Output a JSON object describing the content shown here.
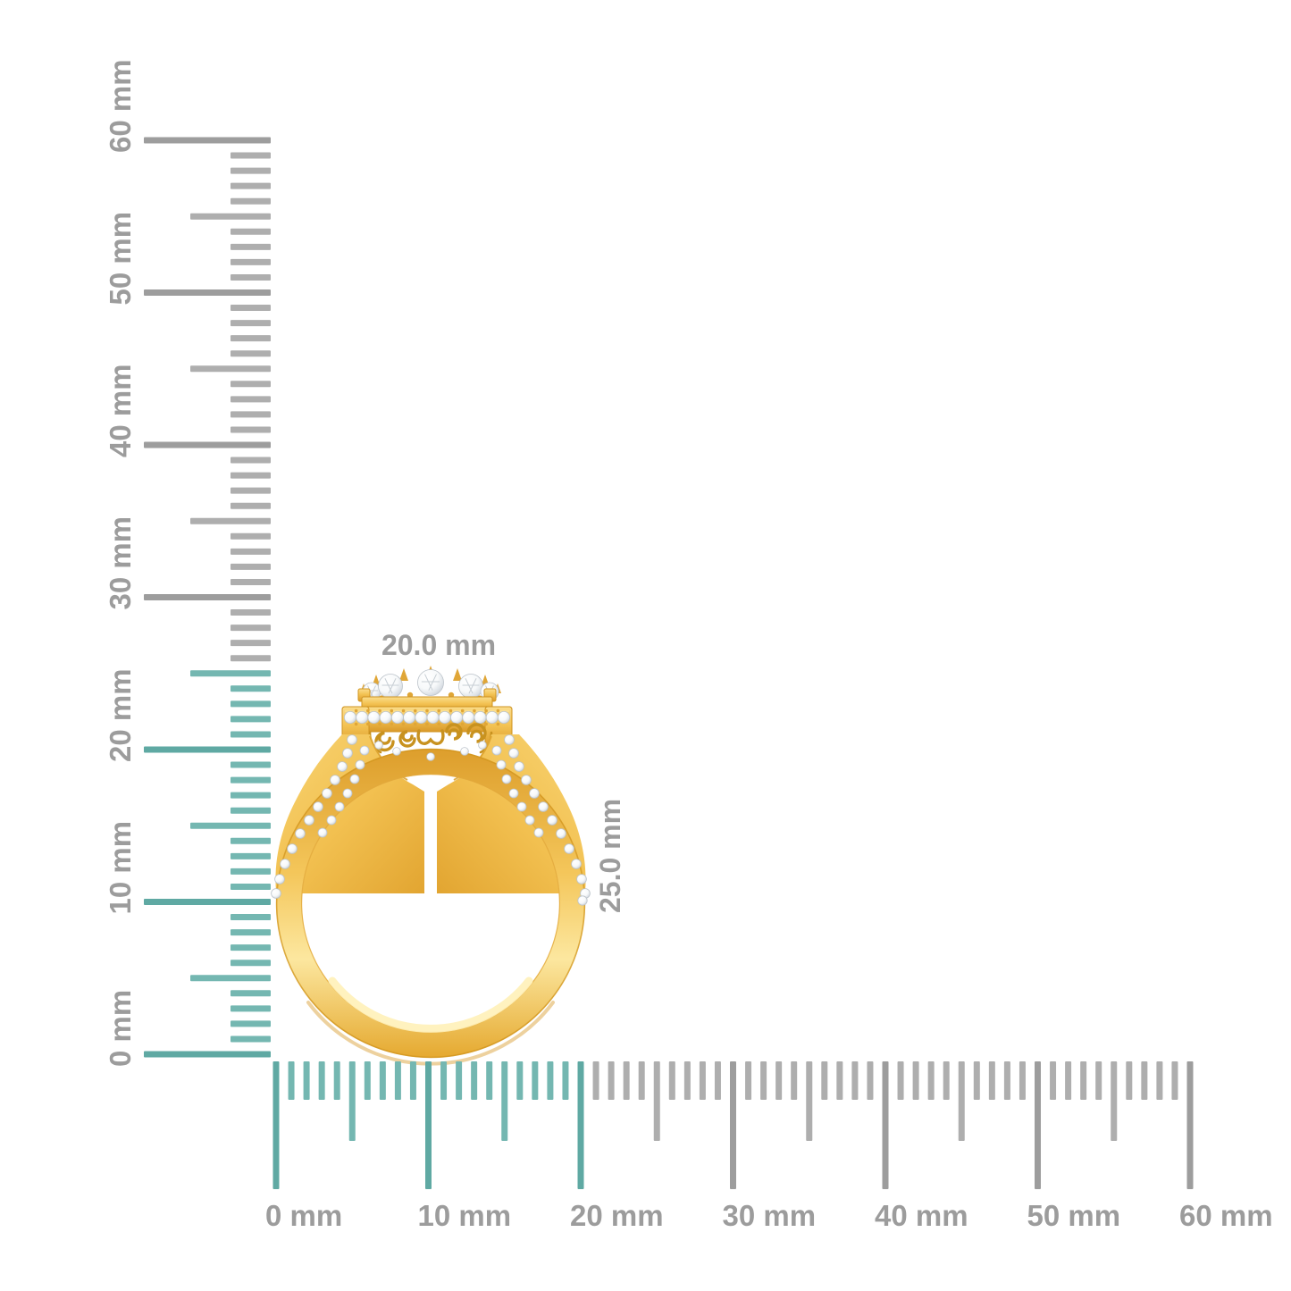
{
  "annotations": {
    "width_label": "20.0 mm",
    "height_label": "25.0 mm"
  },
  "rulers": {
    "unit": "mm",
    "vertical": {
      "max_mm": 60,
      "minor_step_mm": 1,
      "half_step_mm": 5,
      "major_step_mm": 10,
      "highlight_to_mm": 25,
      "labels": [
        "0 mm",
        "10 mm",
        "20 mm",
        "30 mm",
        "40 mm",
        "50 mm",
        "60 mm"
      ]
    },
    "horizontal": {
      "max_mm": 60,
      "minor_step_mm": 1,
      "half_step_mm": 5,
      "major_step_mm": 10,
      "highlight_to_mm": 20,
      "labels": [
        "0 mm",
        "10 mm",
        "20 mm",
        "30 mm",
        "40 mm",
        "50 mm",
        "60 mm"
      ]
    }
  },
  "colors": {
    "background": "#ffffff",
    "tick_gray_major": "#9d9d9d",
    "tick_gray_minor": "#aeaeae",
    "tick_teal_major": "#5fa9a3",
    "tick_teal_minor": "#74b7b1",
    "label_gray": "#9c9c9c",
    "gold_light": "#fce79f",
    "gold_mid": "#f4c65a",
    "gold_dark": "#dd9e2c",
    "gold_edge": "#d2961f",
    "diamond_white": "#f7f9fa",
    "diamond_shade": "#c6ccd3"
  }
}
